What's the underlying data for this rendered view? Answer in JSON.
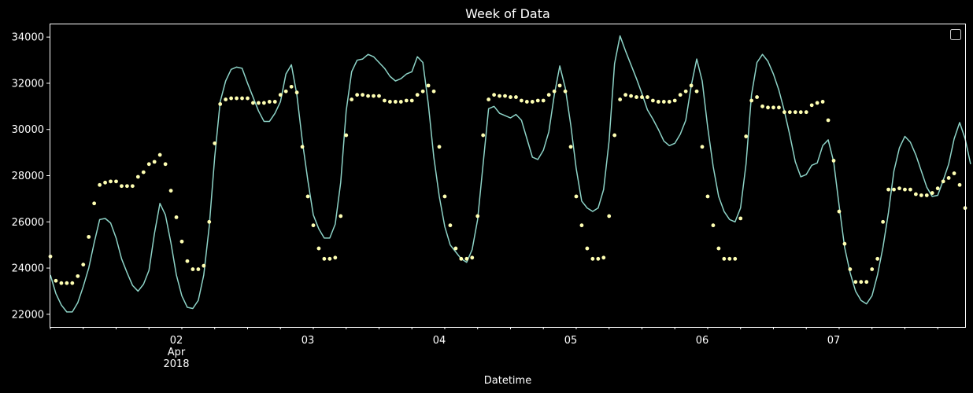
{
  "chart_data": {
    "type": "line",
    "title": "Week of Data",
    "xlabel": "Datetime",
    "ylabel": "",
    "x_range": [
      "2018-04-01 01:00",
      "2018-04-08 00:00"
    ],
    "x_tick_labels": [
      {
        "x": "2018-04-02 00:00",
        "lines": [
          "02",
          "Apr",
          "2018"
        ]
      },
      {
        "x": "2018-04-03 00:00",
        "lines": [
          "03"
        ]
      },
      {
        "x": "2018-04-04 00:00",
        "lines": [
          "04"
        ]
      },
      {
        "x": "2018-04-05 00:00",
        "lines": [
          "05"
        ]
      },
      {
        "x": "2018-04-06 00:00",
        "lines": [
          "06"
        ]
      },
      {
        "x": "2018-04-07 00:00",
        "lines": [
          "07"
        ]
      }
    ],
    "ylim": [
      21450,
      34550
    ],
    "y_ticks": [
      22000,
      24000,
      26000,
      28000,
      30000,
      32000,
      34000
    ],
    "y_tick_labels": [
      "22000",
      "24000",
      "26000",
      "28000",
      "30000",
      "32000",
      "34000"
    ],
    "grid": false,
    "legend": "upper right (empty)",
    "series": [
      {
        "style": "line",
        "color": "#8dd3c7",
        "x_start": "2018-04-01 01:00",
        "x_step_hours": 1,
        "values": [
          23700,
          22900,
          22400,
          22100,
          22100,
          22500,
          23200,
          24000,
          25100,
          26100,
          26150,
          25950,
          25300,
          24400,
          23800,
          23250,
          23000,
          23300,
          23900,
          25500,
          26800,
          26300,
          25100,
          23700,
          22800,
          22300,
          22250,
          22600,
          23700,
          25800,
          28800,
          31200,
          32100,
          32600,
          32700,
          32650,
          32000,
          31400,
          30800,
          30350,
          30350,
          30700,
          31200,
          32400,
          32800,
          31500,
          29500,
          27800,
          26300,
          25700,
          25300,
          25300,
          25900,
          27700,
          30800,
          32500,
          33000,
          33050,
          33250,
          33150,
          32900,
          32650,
          32300,
          32100,
          32200,
          32400,
          32500,
          33150,
          32900,
          31100,
          28800,
          27100,
          25800,
          25000,
          24700,
          24400,
          24250,
          24800,
          26100,
          28500,
          30900,
          31000,
          30700,
          30600,
          30500,
          30650,
          30400,
          29600,
          28800,
          28700,
          29100,
          29900,
          31500,
          32750,
          31800,
          30200,
          28300,
          26900,
          26600,
          26450,
          26600,
          27400,
          29500,
          32850,
          34050,
          33400,
          32800,
          32200,
          31550,
          30850,
          30450,
          30000,
          29500,
          29300,
          29400,
          29800,
          30400,
          31900,
          33050,
          32100,
          30100,
          28400,
          27100,
          26450,
          26100,
          26000,
          26600,
          28500,
          31500,
          32900,
          33250,
          32950,
          32400,
          31700,
          30800,
          29750,
          28600,
          27950,
          28050,
          28450,
          28550,
          29300,
          29550,
          28600,
          26700,
          24900,
          23800,
          23000,
          22600,
          22450,
          22800,
          23700,
          24900,
          26400,
          28200,
          29200,
          29700,
          29450,
          28900,
          28200,
          27500,
          27100,
          27150,
          27800,
          28500,
          29600,
          30300,
          29600,
          28500
        ]
      },
      {
        "style": "points",
        "color": "#ffffb3",
        "x_start": "2018-04-01 01:00",
        "x_step_hours": 1,
        "values": [
          24500,
          23450,
          23350,
          23350,
          23350,
          23650,
          24150,
          25350,
          26800,
          27600,
          27700,
          27750,
          27750,
          27550,
          27550,
          27550,
          27950,
          28150,
          28500,
          28600,
          28900,
          28500,
          27350,
          26200,
          25150,
          24300,
          23950,
          23950,
          24100,
          26000,
          29400,
          31100,
          31300,
          31350,
          31350,
          31350,
          31350,
          31150,
          31150,
          31150,
          31200,
          31200,
          31500,
          31650,
          31850,
          31600,
          29250,
          27100,
          25850,
          24850,
          24400,
          24400,
          24450,
          26250,
          29750,
          31300,
          31500,
          31500,
          31450,
          31450,
          31450,
          31250,
          31200,
          31200,
          31200,
          31250,
          31250,
          31500,
          31650,
          31900,
          31650,
          29250,
          27100,
          25850,
          24850,
          24400,
          24400,
          24450,
          26250,
          29750,
          31300,
          31500,
          31450,
          31450,
          31400,
          31400,
          31250,
          31200,
          31200,
          31250,
          31250,
          31500,
          31650,
          31900,
          31650,
          29250,
          27100,
          25850,
          24850,
          24400,
          24400,
          24450,
          26250,
          29750,
          31300,
          31500,
          31450,
          31400,
          31400,
          31400,
          31250,
          31200,
          31200,
          31200,
          31250,
          31500,
          31650,
          31900,
          31650,
          29250,
          27100,
          25850,
          24850,
          24400,
          24400,
          24400,
          26150,
          29700,
          31250,
          31400,
          31000,
          30950,
          30950,
          30950,
          30750,
          30750,
          30750,
          30750,
          30750,
          31050,
          31150,
          31200,
          30400,
          28650,
          26450,
          25050,
          23950,
          23400,
          23400,
          23400,
          23950,
          24400,
          26000,
          27400,
          27400,
          27450,
          27400,
          27400,
          27200,
          27150,
          27150,
          27250,
          27450,
          27750,
          27900,
          28100,
          27600,
          26600
        ]
      }
    ]
  }
}
